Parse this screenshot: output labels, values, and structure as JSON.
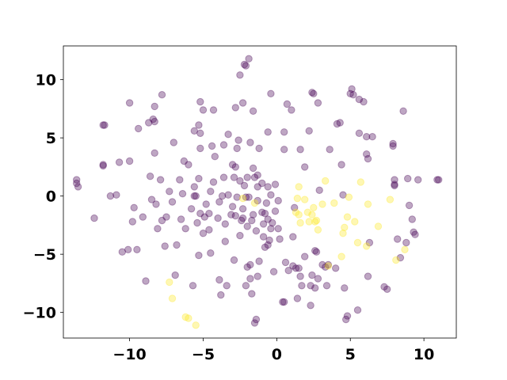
{
  "chart_data": {
    "type": "scatter",
    "title": "",
    "xlabel": "",
    "ylabel": "",
    "xlim": [
      -14.5,
      12.2
    ],
    "ylim": [
      -12.2,
      12.9
    ],
    "xticks": [
      -10,
      -5,
      0,
      5,
      10
    ],
    "yticks": [
      -10,
      -5,
      0,
      5,
      10
    ],
    "xtick_labels": [
      "−10",
      "−5",
      "0",
      "5",
      "10"
    ],
    "ytick_labels": [
      "−10",
      "−5",
      "0",
      "5",
      "10"
    ],
    "grid": false,
    "legend": "none",
    "marker_alpha": 0.35,
    "series": [
      {
        "color": "#440154",
        "points": [
          [
            -13.6,
            1.4
          ],
          [
            -13.6,
            1.1
          ],
          [
            -13.5,
            0.8
          ],
          [
            -12.4,
            -1.9
          ],
          [
            -11.8,
            2.7
          ],
          [
            -11.8,
            2.6
          ],
          [
            -11.8,
            6.1
          ],
          [
            -11.7,
            6.1
          ],
          [
            -11.3,
            0.0
          ],
          [
            -10.9,
            0.1
          ],
          [
            -10.7,
            2.9
          ],
          [
            -10.5,
            -4.8
          ],
          [
            -10.1,
            -4.6
          ],
          [
            -10.0,
            3.0
          ],
          [
            -10.0,
            8.0
          ],
          [
            -9.8,
            -2.2
          ],
          [
            -9.7,
            -1.0
          ],
          [
            -9.5,
            -4.6
          ],
          [
            -9.4,
            5.8
          ],
          [
            -9.1,
            -1.8
          ],
          [
            -8.9,
            -7.3
          ],
          [
            -8.7,
            6.3
          ],
          [
            -8.6,
            1.7
          ],
          [
            -8.5,
            -0.3
          ],
          [
            -8.4,
            6.6
          ],
          [
            -8.3,
            6.4
          ],
          [
            -8.3,
            7.7
          ],
          [
            -8.3,
            3.7
          ],
          [
            -8.2,
            -0.7
          ],
          [
            -8.1,
            -2.8
          ],
          [
            -7.9,
            1.4
          ],
          [
            -7.8,
            -2.1
          ],
          [
            -7.8,
            8.7
          ],
          [
            -7.6,
            -4.3
          ],
          [
            -7.5,
            -1.8
          ],
          [
            -7.3,
            0.4
          ],
          [
            -7.1,
            -0.5
          ],
          [
            -7.0,
            4.6
          ],
          [
            -6.9,
            -6.8
          ],
          [
            -6.8,
            -4.2
          ],
          [
            -6.6,
            1.4
          ],
          [
            -6.5,
            -2.0
          ],
          [
            -6.4,
            0.2
          ],
          [
            -6.3,
            3.0
          ],
          [
            -6.2,
            -2.8
          ],
          [
            -6.0,
            2.7
          ],
          [
            -5.8,
            -1.1
          ],
          [
            -5.7,
            -7.7
          ],
          [
            -5.6,
            0.8
          ],
          [
            -5.6,
            5.6
          ],
          [
            -5.6,
            0.0
          ],
          [
            -5.5,
            0.0
          ],
          [
            -5.4,
            -2.3
          ],
          [
            -5.3,
            -5.1
          ],
          [
            -5.3,
            1.5
          ],
          [
            -5.3,
            6.1
          ],
          [
            -5.2,
            -1.5
          ],
          [
            -5.2,
            5.4
          ],
          [
            -5.2,
            4.1
          ],
          [
            -5.2,
            8.1
          ],
          [
            -5.0,
            7.4
          ],
          [
            -5.0,
            -3.2
          ],
          [
            -4.9,
            -1.8
          ],
          [
            -4.8,
            -0.7
          ],
          [
            -4.6,
            -1.5
          ],
          [
            -4.6,
            -2.9
          ],
          [
            -4.5,
            -4.9
          ],
          [
            -4.5,
            0.4
          ],
          [
            -4.4,
            4.3
          ],
          [
            -4.3,
            1.2
          ],
          [
            -4.3,
            7.4
          ],
          [
            -4.2,
            3.4
          ],
          [
            -4.0,
            -1.9
          ],
          [
            -3.9,
            -0.5
          ],
          [
            -3.9,
            -7.2
          ],
          [
            -3.8,
            -8.5
          ],
          [
            -3.7,
            0.0
          ],
          [
            -3.6,
            1.6
          ],
          [
            -3.6,
            4.4
          ],
          [
            -3.5,
            -2.4
          ],
          [
            -3.5,
            -3.9
          ],
          [
            -3.4,
            -7.7
          ],
          [
            -3.3,
            5.3
          ],
          [
            -3.3,
            0.1
          ],
          [
            -3.1,
            -1.6
          ],
          [
            -3.0,
            2.7
          ],
          [
            -3.0,
            -0.9
          ],
          [
            -2.9,
            1.6
          ],
          [
            -2.9,
            -5.5
          ],
          [
            -2.8,
            -1.7
          ],
          [
            -2.8,
            2.5
          ],
          [
            -2.8,
            7.6
          ],
          [
            -2.7,
            -0.1
          ],
          [
            -2.7,
            4.1
          ],
          [
            -2.6,
            4.8
          ],
          [
            -2.5,
            -3.4
          ],
          [
            -2.5,
            1.3
          ],
          [
            -2.5,
            10.4
          ],
          [
            -2.4,
            -2.1
          ],
          [
            -2.3,
            8.0
          ],
          [
            -2.3,
            -1.1
          ],
          [
            -2.3,
            -1.9
          ],
          [
            -2.2,
            0.9
          ],
          [
            -2.2,
            11.3
          ],
          [
            -2.1,
            11.2
          ],
          [
            -2.1,
            -7.7
          ],
          [
            -2.1,
            -0.1
          ],
          [
            -2.0,
            -2.6
          ],
          [
            -2.0,
            1.6
          ],
          [
            -2.0,
            -6.1
          ],
          [
            -1.9,
            -0.1
          ],
          [
            -1.9,
            11.8
          ],
          [
            -1.8,
            -5.9
          ],
          [
            -1.8,
            -7.1
          ],
          [
            -1.8,
            4.6
          ],
          [
            -1.7,
            -8.4
          ],
          [
            -1.7,
            -2.1
          ],
          [
            -1.6,
            -1.6
          ],
          [
            -1.6,
            7.3
          ],
          [
            -1.6,
            2.4
          ],
          [
            -1.5,
            1.6
          ],
          [
            -1.5,
            -10.9
          ],
          [
            -1.4,
            -10.6
          ],
          [
            -1.4,
            -3.0
          ],
          [
            -1.3,
            -0.4
          ],
          [
            -1.3,
            1.8
          ],
          [
            -1.3,
            -6.9
          ],
          [
            -1.3,
            0.8
          ],
          [
            -1.2,
            -5.6
          ],
          [
            -1.2,
            4.1
          ],
          [
            -1.0,
            1.1
          ],
          [
            -1.0,
            -1.4
          ],
          [
            -0.9,
            -3.5
          ],
          [
            -0.9,
            -2.4
          ],
          [
            -0.8,
            -1.5
          ],
          [
            -0.8,
            -4.4
          ],
          [
            -0.7,
            -0.6
          ],
          [
            -0.6,
            -4.2
          ],
          [
            -0.6,
            0.8
          ],
          [
            -0.6,
            5.5
          ],
          [
            -0.6,
            -2.0
          ],
          [
            -0.5,
            -3.8
          ],
          [
            -0.4,
            -2.8
          ],
          [
            -0.4,
            8.8
          ],
          [
            -0.4,
            0.1
          ],
          [
            -0.3,
            -2.3
          ],
          [
            -0.2,
            -6.5
          ],
          [
            -0.1,
            -1.3
          ],
          [
            -0.1,
            1.0
          ],
          [
            0.1,
            -0.4
          ],
          [
            0.1,
            -2.8
          ],
          [
            0.2,
            -3.7
          ],
          [
            0.4,
            -9.1
          ],
          [
            0.5,
            -9.1
          ],
          [
            0.5,
            5.5
          ],
          [
            0.5,
            4.0
          ],
          [
            0.6,
            -5.7
          ],
          [
            0.7,
            7.9
          ],
          [
            0.8,
            -6.4
          ],
          [
            1.0,
            7.4
          ],
          [
            1.1,
            -3.5
          ],
          [
            1.1,
            -6.0
          ],
          [
            1.2,
            -1.0
          ],
          [
            1.3,
            -6.2
          ],
          [
            1.4,
            -8.8
          ],
          [
            1.5,
            -6.2
          ],
          [
            1.6,
            4.0
          ],
          [
            1.6,
            -6.9
          ],
          [
            1.7,
            -7.7
          ],
          [
            1.9,
            2.5
          ],
          [
            1.9,
            -5.2
          ],
          [
            2.2,
            5.6
          ],
          [
            2.3,
            -7.7
          ],
          [
            2.3,
            -9.4
          ],
          [
            2.4,
            -6.8
          ],
          [
            2.4,
            8.9
          ],
          [
            2.5,
            8.8
          ],
          [
            2.6,
            -7.9
          ],
          [
            2.6,
            -4.7
          ],
          [
            2.7,
            -4.8
          ],
          [
            2.8,
            8.0
          ],
          [
            2.8,
            -7.1
          ],
          [
            2.9,
            0.5
          ],
          [
            3.1,
            -5.9
          ],
          [
            3.3,
            -6.1
          ],
          [
            3.4,
            -7.7
          ],
          [
            3.5,
            -5.9
          ],
          [
            3.6,
            4.0
          ],
          [
            4.0,
            -6.2
          ],
          [
            4.1,
            6.2
          ],
          [
            4.3,
            6.3
          ],
          [
            4.4,
            2.7
          ],
          [
            4.5,
            0.1
          ],
          [
            4.6,
            -7.9
          ],
          [
            4.7,
            -10.6
          ],
          [
            4.8,
            -10.3
          ],
          [
            5.0,
            8.8
          ],
          [
            5.1,
            9.2
          ],
          [
            5.2,
            8.7
          ],
          [
            5.5,
            -9.8
          ],
          [
            5.6,
            8.3
          ],
          [
            5.6,
            5.4
          ],
          [
            5.9,
            8.1
          ],
          [
            6.1,
            5.1
          ],
          [
            6.1,
            3.6
          ],
          [
            6.2,
            3.2
          ],
          [
            6.2,
            -6.9
          ],
          [
            6.3,
            -4.0
          ],
          [
            6.5,
            5.1
          ],
          [
            7.3,
            -7.8
          ],
          [
            7.5,
            -8.0
          ],
          [
            7.9,
            4.5
          ],
          [
            7.9,
            4.3
          ],
          [
            8.0,
            0.9
          ],
          [
            8.0,
            1.0
          ],
          [
            8.0,
            1.4
          ],
          [
            8.2,
            -3.7
          ],
          [
            8.4,
            -5.3
          ],
          [
            8.6,
            7.3
          ],
          [
            8.8,
            -4.0
          ],
          [
            8.9,
            1.5
          ],
          [
            9.0,
            -0.8
          ],
          [
            9.2,
            -2.0
          ],
          [
            9.3,
            -3.1
          ],
          [
            9.4,
            -3.3
          ],
          [
            9.6,
            1.4
          ],
          [
            10.9,
            1.4
          ],
          [
            11.0,
            1.4
          ]
        ]
      },
      {
        "color": "#fde725",
        "points": [
          [
            -7.3,
            -7.4
          ],
          [
            -7.1,
            -8.8
          ],
          [
            -6.2,
            -10.4
          ],
          [
            -6.0,
            -10.5
          ],
          [
            -5.5,
            -11.1
          ],
          [
            -2.3,
            -0.2
          ],
          [
            -1.5,
            -0.6
          ],
          [
            1.3,
            -1.4
          ],
          [
            1.4,
            -0.2
          ],
          [
            1.5,
            0.8
          ],
          [
            1.5,
            -1.6
          ],
          [
            1.6,
            -2.3
          ],
          [
            1.9,
            -0.3
          ],
          [
            2.1,
            -1.4
          ],
          [
            2.2,
            -2.2
          ],
          [
            2.4,
            -1.6
          ],
          [
            2.5,
            -1.0
          ],
          [
            2.6,
            -2.2
          ],
          [
            2.7,
            -2.1
          ],
          [
            2.8,
            -2.9
          ],
          [
            3.1,
            -0.7
          ],
          [
            3.3,
            1.3
          ],
          [
            3.5,
            -6.0
          ],
          [
            3.9,
            -0.6
          ],
          [
            4.4,
            -5.2
          ],
          [
            4.5,
            -3.2
          ],
          [
            4.6,
            -2.7
          ],
          [
            4.8,
            -1.8
          ],
          [
            4.9,
            -0.1
          ],
          [
            5.3,
            -2.2
          ],
          [
            5.5,
            -4.0
          ],
          [
            5.7,
            1.2
          ],
          [
            6.1,
            -4.3
          ],
          [
            6.2,
            -0.7
          ],
          [
            6.9,
            -2.6
          ],
          [
            7.7,
            -0.3
          ],
          [
            8.1,
            -5.5
          ],
          [
            8.7,
            -4.6
          ]
        ]
      }
    ]
  }
}
